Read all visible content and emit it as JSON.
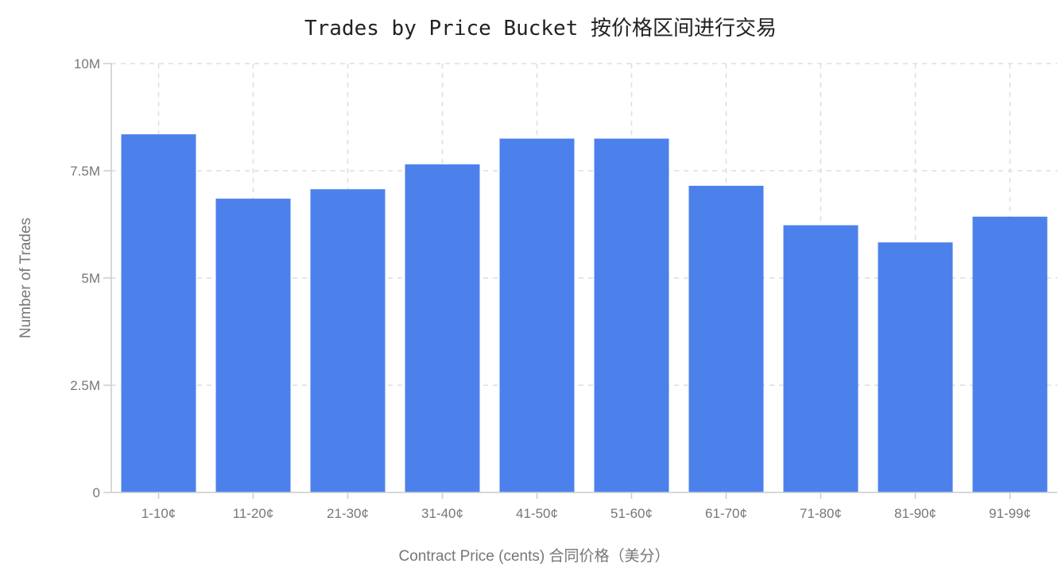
{
  "chart_data": {
    "type": "bar",
    "title": "Trades by Price Bucket  按价格区间进行交易",
    "xlabel": "Contract Price (cents) 合同价格（美分）",
    "ylabel": "Number of Trades",
    "categories": [
      "1-10¢",
      "11-20¢",
      "21-30¢",
      "31-40¢",
      "41-50¢",
      "51-60¢",
      "61-70¢",
      "71-80¢",
      "81-90¢",
      "91-99¢"
    ],
    "values": [
      8350000,
      6850000,
      7070000,
      7650000,
      8250000,
      8250000,
      7150000,
      6230000,
      5830000,
      6430000
    ],
    "ylim": [
      0,
      10000000
    ],
    "yticks": [
      0,
      2500000,
      5000000,
      7500000,
      10000000
    ],
    "ytick_labels": [
      "0",
      "2.5M",
      "5M",
      "7.5M",
      "10M"
    ],
    "grid": true,
    "bar_color": "#4c81eb"
  }
}
